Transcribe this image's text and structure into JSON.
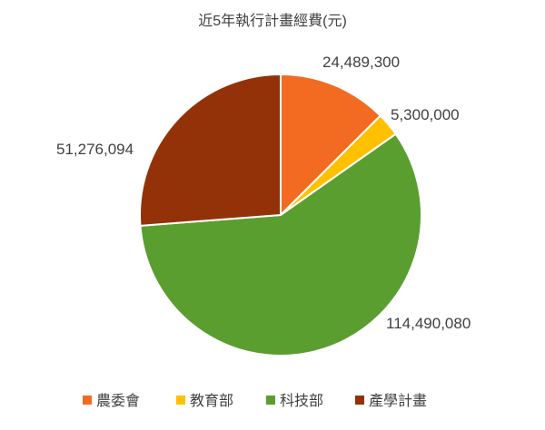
{
  "chart_data": {
    "type": "pie",
    "title": "近5年執行計畫經費(元)",
    "categories": [
      "農委會",
      "教育部",
      "科技部",
      "產學計畫"
    ],
    "values": [
      24489300,
      5300000,
      114490080,
      51276094
    ],
    "colors": [
      "#F26B21",
      "#FFC000",
      "#5B9E30",
      "#933209"
    ],
    "start": "top",
    "direction": "clockwise",
    "legend": "bottom",
    "data_labels": true
  }
}
